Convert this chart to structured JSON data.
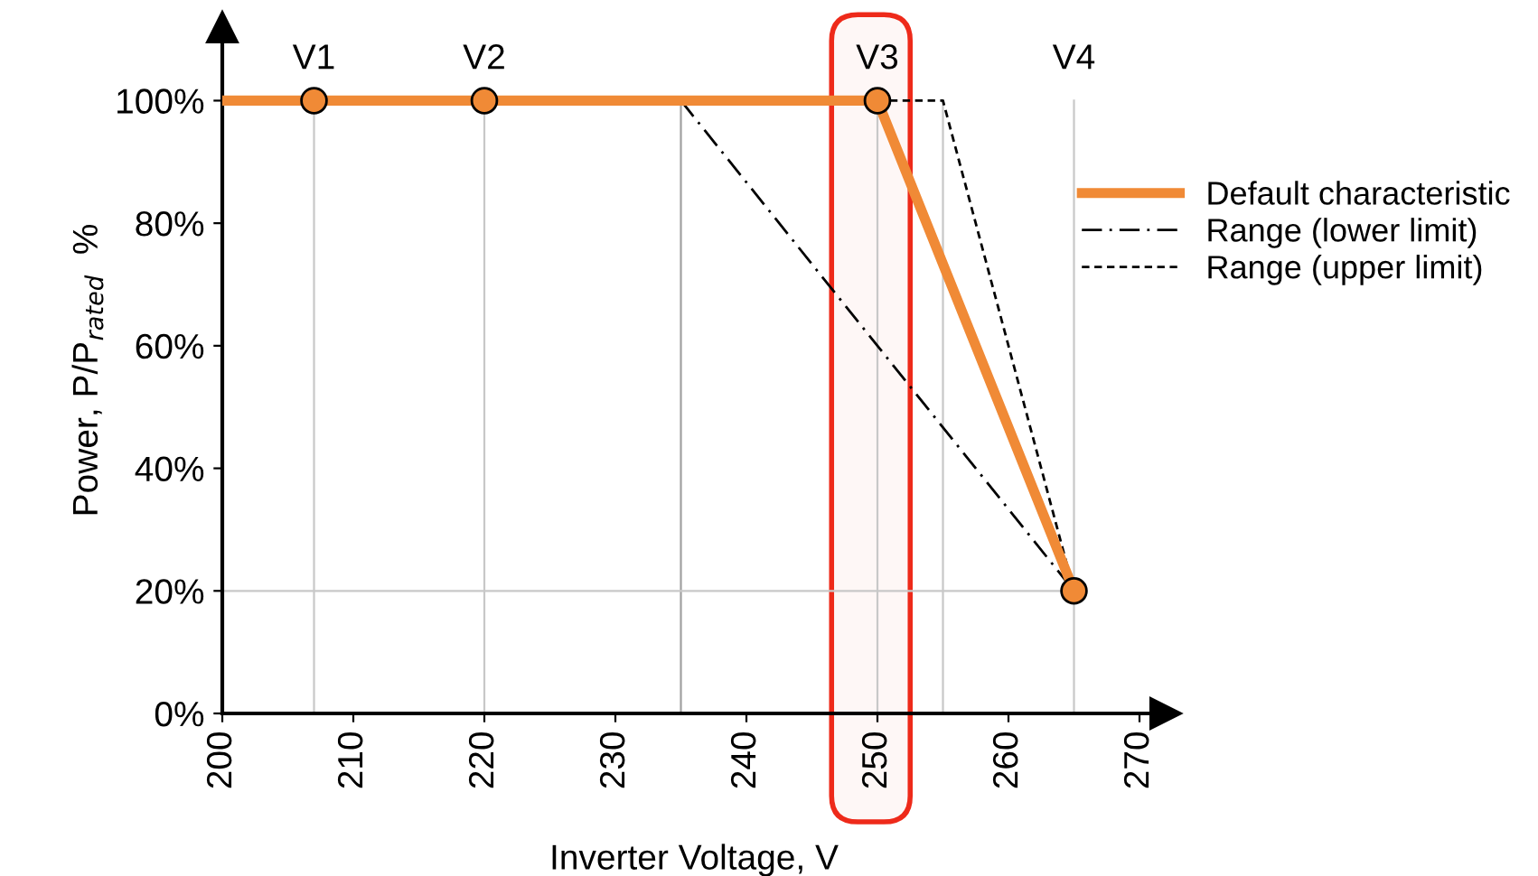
{
  "chart_data": {
    "type": "line",
    "xlabel": "Inverter Voltage, V",
    "ylabel": "Power, P/P$_{rated}$  %",
    "xlim": [
      200,
      272
    ],
    "ylim": [
      0,
      112
    ],
    "xticks": [
      200,
      210,
      220,
      230,
      240,
      250,
      260,
      270
    ],
    "yticks": [
      {
        "value": 0,
        "label": "0%"
      },
      {
        "value": 20,
        "label": "20%"
      },
      {
        "value": 40,
        "label": "40%"
      },
      {
        "value": 60,
        "label": "60%"
      },
      {
        "value": 80,
        "label": "80%"
      },
      {
        "value": 100,
        "label": "100%"
      }
    ],
    "series": [
      {
        "name": "Default characteristic",
        "color": "#f08a36",
        "x": [
          200,
          207,
          220,
          250,
          265
        ],
        "values": [
          100,
          100,
          100,
          100,
          20
        ],
        "marker": "circle",
        "line_style": "solid"
      },
      {
        "name": "Range (lower limit)",
        "color": "#000000",
        "x": [
          235,
          265
        ],
        "values": [
          100,
          20
        ],
        "marker": "none",
        "line_style": "dashdot"
      },
      {
        "name": "Range (upper limit)",
        "color": "#000000",
        "x": [
          250,
          255,
          265
        ],
        "values": [
          100,
          100,
          20
        ],
        "marker": "none",
        "line_style": "dashed"
      }
    ],
    "ref_lines": [
      {
        "axis": "x",
        "value": 207,
        "label": "V1",
        "color": "#c8c8c8"
      },
      {
        "axis": "x",
        "value": 220,
        "label": "V2",
        "color": "#c8c8c8"
      },
      {
        "axis": "x",
        "value": 235,
        "color": "#a0a0a0"
      },
      {
        "axis": "x",
        "value": 250,
        "label": "V3",
        "color": "#c8c8c8"
      },
      {
        "axis": "x",
        "value": 255,
        "color": "#c8c8c8"
      },
      {
        "axis": "x",
        "value": 265,
        "label": "V4",
        "color": "#c8c8c8"
      },
      {
        "axis": "y",
        "value": 20,
        "color": "#c8c8c8"
      }
    ],
    "bands": [
      {
        "axis": "x",
        "from": 246.5,
        "to": 252.5,
        "color": "#ee2a1a"
      }
    ],
    "legend": "right",
    "grid": false
  }
}
